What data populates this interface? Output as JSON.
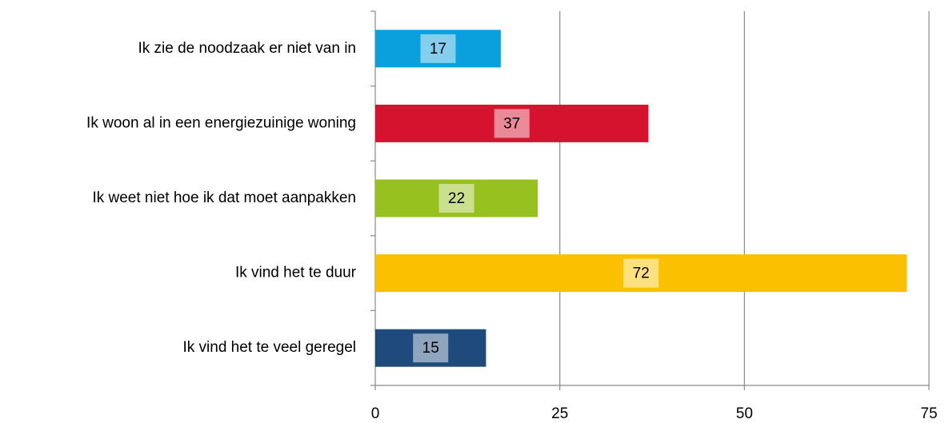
{
  "chart_data": {
    "type": "barh",
    "categories": [
      "Ik zie de noodzaak er niet van in",
      "Ik woon al in een energiezuinige woning",
      "Ik weet niet hoe ik dat moet aanpakken",
      "Ik vind het te duur",
      "Ik vind het te veel geregel"
    ],
    "values": [
      17,
      37,
      22,
      72,
      15
    ],
    "colors": [
      "#0a9fdd",
      "#d5132f",
      "#96c11f",
      "#fbc100",
      "#1f4a7c"
    ],
    "xlim": [
      0,
      75
    ],
    "xticks": [
      0,
      25,
      50,
      75
    ],
    "grid": true
  }
}
